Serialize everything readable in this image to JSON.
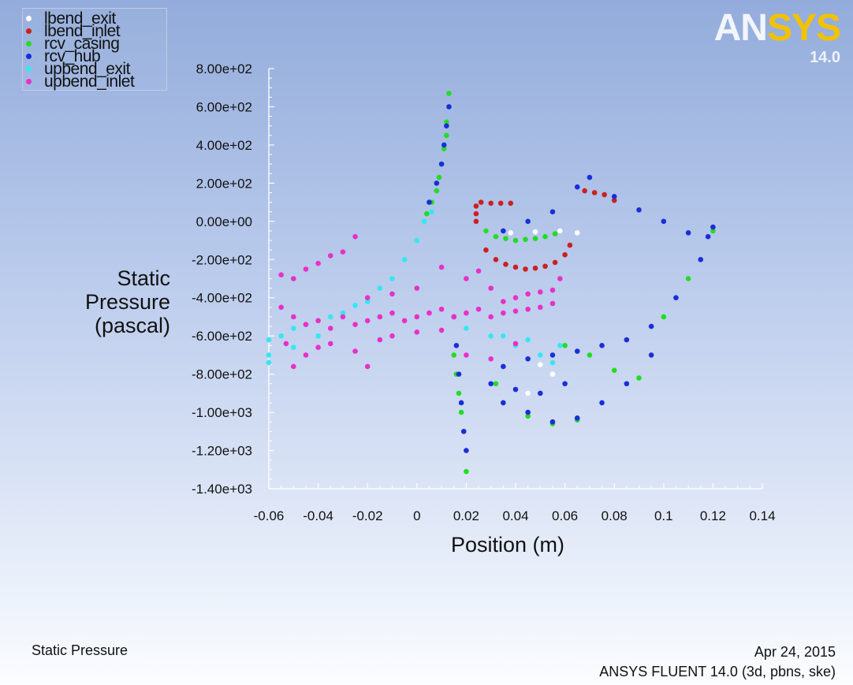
{
  "chart_data": {
    "type": "scatter",
    "title": "Static Pressure",
    "xlabel": "Position (m)",
    "ylabel": [
      "Static",
      "Pressure",
      "(pascal)"
    ],
    "xlim": [
      -0.06,
      0.14
    ],
    "ylim": [
      -1400,
      800
    ],
    "xticks": [
      "-0.06",
      "-0.04",
      "-0.02",
      "0",
      "0.02",
      "0.04",
      "0.06",
      "0.08",
      "0.1",
      "0.12",
      "0.14"
    ],
    "yticks": [
      "8.00e+02",
      "6.00e+02",
      "4.00e+02",
      "2.00e+02",
      "0.00e+00",
      "-2.00e+02",
      "-4.00e+02",
      "-6.00e+02",
      "-8.00e+02",
      "-1.00e+03",
      "-1.20e+03",
      "-1.40e+03"
    ],
    "grid": false,
    "legend_position": "top-left",
    "series": [
      {
        "name": "lbend_exit",
        "color": "#ffffff",
        "points": [
          [
            0.028,
            -50
          ],
          [
            0.038,
            -60
          ],
          [
            0.048,
            -55
          ],
          [
            0.058,
            -50
          ],
          [
            0.065,
            -60
          ],
          [
            0.05,
            -750
          ],
          [
            0.055,
            -800
          ],
          [
            0.06,
            -850
          ],
          [
            0.045,
            -900
          ]
        ]
      },
      {
        "name": "lbend_inlet",
        "color": "#cc2020",
        "points": [
          [
            0.024,
            0
          ],
          [
            0.024,
            40
          ],
          [
            0.024,
            80
          ],
          [
            0.026,
            100
          ],
          [
            0.028,
            -150
          ],
          [
            0.032,
            -200
          ],
          [
            0.036,
            -225
          ],
          [
            0.04,
            -240
          ],
          [
            0.044,
            -250
          ],
          [
            0.048,
            -245
          ],
          [
            0.052,
            -235
          ],
          [
            0.056,
            -215
          ],
          [
            0.06,
            -175
          ],
          [
            0.062,
            -125
          ],
          [
            0.068,
            160
          ],
          [
            0.072,
            150
          ],
          [
            0.076,
            140
          ],
          [
            0.08,
            110
          ],
          [
            0.03,
            95
          ],
          [
            0.034,
            95
          ],
          [
            0.038,
            95
          ]
        ]
      },
      {
        "name": "rcv_casing",
        "color": "#22dd22",
        "points": [
          [
            0.013,
            670
          ],
          [
            0.013,
            600
          ],
          [
            0.012,
            520
          ],
          [
            0.012,
            450
          ],
          [
            0.011,
            380
          ],
          [
            0.01,
            300
          ],
          [
            0.009,
            230
          ],
          [
            0.008,
            160
          ],
          [
            0.006,
            100
          ],
          [
            0.004,
            40
          ],
          [
            0.015,
            -700
          ],
          [
            0.016,
            -800
          ],
          [
            0.017,
            -900
          ],
          [
            0.018,
            -1000
          ],
          [
            0.019,
            -1100
          ],
          [
            0.02,
            -1310
          ],
          [
            0.028,
            -50
          ],
          [
            0.032,
            -80
          ],
          [
            0.036,
            -90
          ],
          [
            0.04,
            -100
          ],
          [
            0.044,
            -95
          ],
          [
            0.048,
            -90
          ],
          [
            0.052,
            -80
          ],
          [
            0.056,
            -65
          ],
          [
            0.06,
            -650
          ],
          [
            0.07,
            -700
          ],
          [
            0.08,
            -780
          ],
          [
            0.09,
            -820
          ],
          [
            0.1,
            -500
          ],
          [
            0.11,
            -300
          ],
          [
            0.12,
            -50
          ],
          [
            0.045,
            -1020
          ],
          [
            0.055,
            -1060
          ],
          [
            0.065,
            -1040
          ],
          [
            0.035,
            -950
          ],
          [
            0.032,
            -850
          ]
        ]
      },
      {
        "name": "rcv_hub",
        "color": "#1a2ed8",
        "points": [
          [
            0.013,
            600
          ],
          [
            0.012,
            500
          ],
          [
            0.011,
            400
          ],
          [
            0.01,
            300
          ],
          [
            0.008,
            200
          ],
          [
            0.005,
            100
          ],
          [
            0.015,
            -500
          ],
          [
            0.016,
            -650
          ],
          [
            0.017,
            -800
          ],
          [
            0.018,
            -950
          ],
          [
            0.019,
            -1100
          ],
          [
            0.02,
            -1200
          ],
          [
            0.035,
            -50
          ],
          [
            0.045,
            0
          ],
          [
            0.055,
            50
          ],
          [
            0.065,
            180
          ],
          [
            0.07,
            230
          ],
          [
            0.08,
            130
          ],
          [
            0.09,
            60
          ],
          [
            0.1,
            0
          ],
          [
            0.11,
            -60
          ],
          [
            0.118,
            -80
          ],
          [
            0.12,
            -30
          ],
          [
            0.115,
            -200
          ],
          [
            0.105,
            -400
          ],
          [
            0.095,
            -550
          ],
          [
            0.085,
            -620
          ],
          [
            0.075,
            -650
          ],
          [
            0.065,
            -680
          ],
          [
            0.055,
            -700
          ],
          [
            0.045,
            -720
          ],
          [
            0.035,
            -760
          ],
          [
            0.03,
            -850
          ],
          [
            0.035,
            -950
          ],
          [
            0.045,
            -1000
          ],
          [
            0.055,
            -1050
          ],
          [
            0.065,
            -1030
          ],
          [
            0.075,
            -950
          ],
          [
            0.085,
            -850
          ],
          [
            0.095,
            -700
          ],
          [
            0.06,
            -850
          ],
          [
            0.05,
            -900
          ],
          [
            0.04,
            -880
          ]
        ]
      },
      {
        "name": "upbend_exit",
        "color": "#33e8f0",
        "points": [
          [
            -0.06,
            -620
          ],
          [
            -0.06,
            -700
          ],
          [
            -0.055,
            -600
          ],
          [
            -0.05,
            -560
          ],
          [
            -0.045,
            -540
          ],
          [
            -0.04,
            -520
          ],
          [
            -0.035,
            -500
          ],
          [
            -0.03,
            -480
          ],
          [
            -0.025,
            -440
          ],
          [
            -0.02,
            -420
          ],
          [
            -0.015,
            -350
          ],
          [
            -0.01,
            -300
          ],
          [
            -0.005,
            -200
          ],
          [
            0,
            -100
          ],
          [
            0.003,
            0
          ],
          [
            0.006,
            50
          ],
          [
            -0.06,
            -740
          ],
          [
            -0.05,
            -660
          ],
          [
            -0.04,
            -600
          ],
          [
            0.02,
            -560
          ],
          [
            0.03,
            -600
          ],
          [
            0.04,
            -650
          ],
          [
            0.05,
            -700
          ],
          [
            0.055,
            -740
          ],
          [
            0.058,
            -650
          ],
          [
            0.045,
            -620
          ],
          [
            0.035,
            -600
          ]
        ]
      },
      {
        "name": "upbend_inlet",
        "color": "#e830c8",
        "points": [
          [
            -0.055,
            -280
          ],
          [
            -0.05,
            -300
          ],
          [
            -0.045,
            -250
          ],
          [
            -0.04,
            -220
          ],
          [
            -0.035,
            -180
          ],
          [
            -0.03,
            -160
          ],
          [
            -0.025,
            -80
          ],
          [
            -0.055,
            -450
          ],
          [
            -0.05,
            -500
          ],
          [
            -0.045,
            -540
          ],
          [
            -0.04,
            -520
          ],
          [
            -0.035,
            -560
          ],
          [
            -0.03,
            -500
          ],
          [
            -0.025,
            -540
          ],
          [
            -0.02,
            -520
          ],
          [
            -0.015,
            -500
          ],
          [
            -0.01,
            -480
          ],
          [
            -0.005,
            -520
          ],
          [
            0,
            -500
          ],
          [
            0.005,
            -480
          ],
          [
            0.01,
            -460
          ],
          [
            0.015,
            -500
          ],
          [
            0.02,
            -480
          ],
          [
            0.025,
            -460
          ],
          [
            0.03,
            -500
          ],
          [
            0.035,
            -480
          ],
          [
            0.04,
            -470
          ],
          [
            0.045,
            -460
          ],
          [
            0.05,
            -450
          ],
          [
            0.055,
            -430
          ],
          [
            -0.053,
            -640
          ],
          [
            -0.05,
            -760
          ],
          [
            -0.045,
            -700
          ],
          [
            -0.04,
            -660
          ],
          [
            -0.035,
            -640
          ],
          [
            -0.025,
            -680
          ],
          [
            -0.02,
            -760
          ],
          [
            -0.015,
            -620
          ],
          [
            -0.01,
            -600
          ],
          [
            0,
            -580
          ],
          [
            0.01,
            -570
          ],
          [
            0.02,
            -300
          ],
          [
            0.025,
            -260
          ],
          [
            0.03,
            -350
          ],
          [
            0.035,
            -420
          ],
          [
            0.04,
            -400
          ],
          [
            0.045,
            -380
          ],
          [
            0.05,
            -370
          ],
          [
            0.055,
            -360
          ],
          [
            0.058,
            -300
          ],
          [
            0.02,
            -700
          ],
          [
            0.03,
            -720
          ],
          [
            0.04,
            -640
          ],
          [
            -0.02,
            -400
          ],
          [
            -0.01,
            -380
          ],
          [
            0,
            -350
          ],
          [
            0.01,
            -240
          ]
        ]
      }
    ]
  },
  "footer": {
    "left": "Static Pressure",
    "date": "Apr 24, 2015",
    "version_line": "ANSYS FLUENT 14.0 (3d, pbns, ske)"
  },
  "logo": {
    "word_part1": "AN",
    "word_part2": "SYS",
    "version": "14.0"
  }
}
